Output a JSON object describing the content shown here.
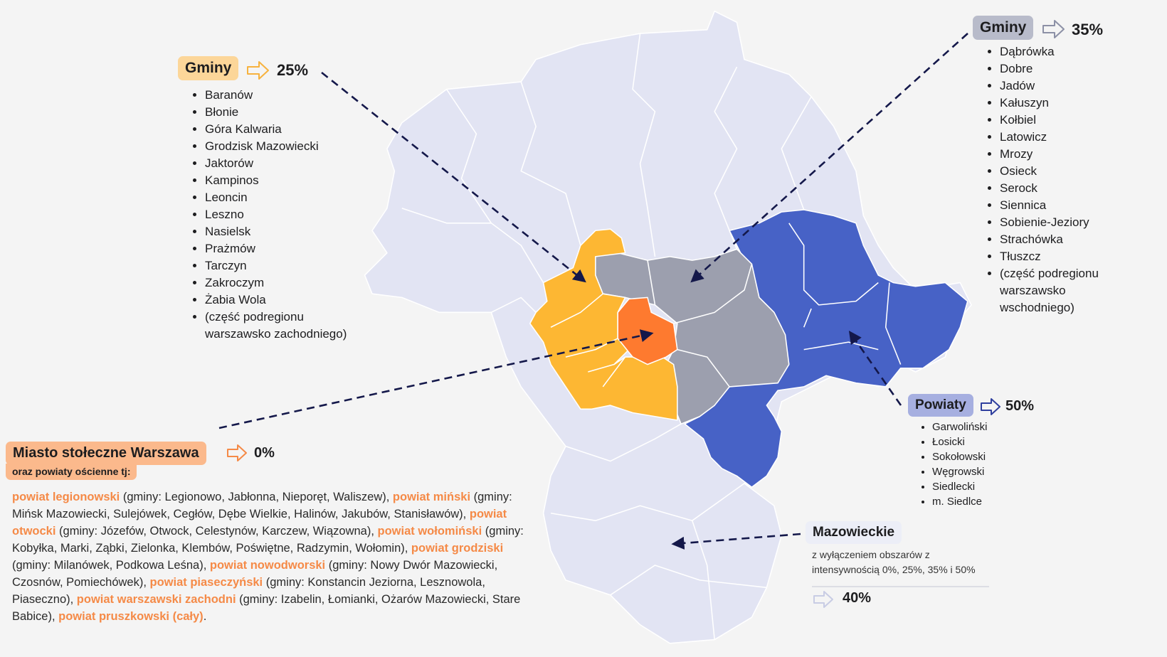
{
  "left_group": {
    "badge": "Gminy",
    "share": "25%",
    "items": [
      "Baranów",
      "Błonie",
      "Góra Kalwaria",
      "Grodzisk Mazowiecki",
      "Jaktorów",
      "Kampinos",
      "Leoncin",
      "Leszno",
      "Nasielsk",
      "Prażmów",
      "Tarczyn",
      "Zakroczym",
      "Żabia Wola",
      "(część podregionu warszawsko zachodniego)"
    ]
  },
  "right_group": {
    "badge": "Gminy",
    "share": "35%",
    "items": [
      "Dąbrówka",
      "Dobre",
      "Jadów",
      "Kałuszyn",
      "Kołbiel",
      "Latowicz",
      "Mrozy",
      "Osieck",
      "Serock",
      "Siennica",
      "Sobienie-Jeziory",
      "Strachówka",
      "Tłuszcz",
      "(część podregionu warszawsko wschodniego)"
    ]
  },
  "powiaty": {
    "badge": "Powiaty",
    "share": "50%",
    "items": [
      "Garwoliński",
      "Łosicki",
      "Sokołowski",
      "Węgrowski",
      "Siedlecki",
      "m. Siedlce"
    ]
  },
  "mazowieckie": {
    "badge": "Mazowieckie",
    "note": "z wyłączeniem obszarów z intensywnością 0%, 25%, 35% i 50%",
    "share": "40%"
  },
  "warszawa": {
    "badge": "Miasto stołeczne Warszawa",
    "subtitle": "oraz powiaty ościenne tj:",
    "share": "0%",
    "description": [
      {
        "text": "powiat legionowski",
        "accent": true
      },
      {
        "text": " (gminy: Legionowo, Jabłonna, Nieporęt, Waliszew), ",
        "accent": false
      },
      {
        "text": "powiat miński",
        "accent": true
      },
      {
        "text": " (gminy: Mińsk Mazowiecki, Sulejówek, Cegłów, Dębe Wielkie, Halinów, Jakubów, Stanisławów), ",
        "accent": false
      },
      {
        "text": "powiat otwocki",
        "accent": true
      },
      {
        "text": " (gminy: Józefów, Otwock, Celestynów, Karczew, Wiązowna), ",
        "accent": false
      },
      {
        "text": "powiat wołomiński",
        "accent": true
      },
      {
        "text": " (gminy: Kobyłka, Marki, Ząbki, Zielonka, Klembów, Poświętne, Radzymin, Wołomin), ",
        "accent": false
      },
      {
        "text": "powiat grodziski",
        "accent": true
      },
      {
        "text": " (gminy: Milanówek, Podkowa Leśna), ",
        "accent": false
      },
      {
        "text": "powiat nowodworski",
        "accent": true
      },
      {
        "text": " (gminy: Nowy Dwór Mazowiecki, Czosnów, Pomiechówek), ",
        "accent": false
      },
      {
        "text": "powiat piaseczyński",
        "accent": true
      },
      {
        "text": " (gminy: Konstancin Jeziorna, Lesznowola, Piaseczno), ",
        "accent": false
      },
      {
        "text": "powiat warszawski zachodni",
        "accent": true
      },
      {
        "text": " (gminy: Izabelin, Łomianki, Ożarów Mazowiecki, Stare Babice), ",
        "accent": false
      },
      {
        "text": "powiat pruszkowski (cały)",
        "accent": true
      },
      {
        "text": ".",
        "accent": false
      }
    ]
  }
}
